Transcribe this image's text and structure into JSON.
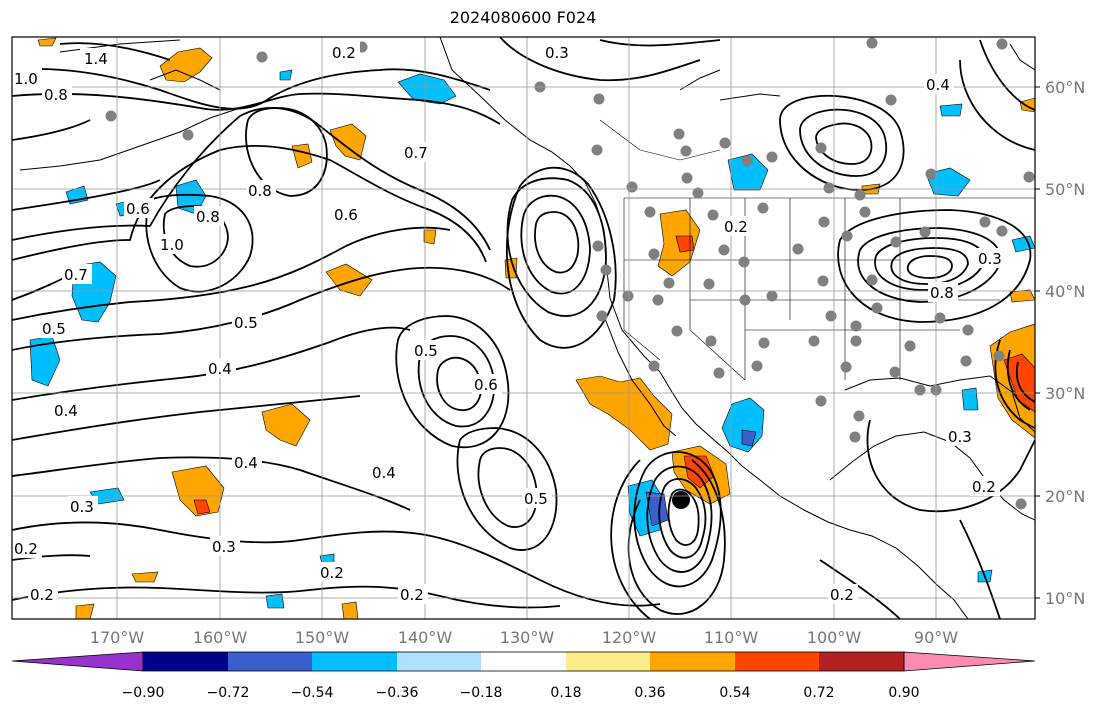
{
  "title": "2024080600 F024",
  "map": {
    "lat_ticks": [
      "60°N",
      "50°N",
      "40°N",
      "30°N",
      "20°N",
      "10°N"
    ],
    "lon_ticks": [
      "170°W",
      "160°W",
      "150°W",
      "140°W",
      "130°W",
      "120°W",
      "110°W",
      "100°W",
      "90°W"
    ],
    "contour_labels": [
      "1.4",
      "1.0",
      "0.8",
      "0.2",
      "0.3",
      "0.4",
      "0.7",
      "0.6",
      "0.8",
      "1.0",
      "0.7",
      "0.5",
      "0.8",
      "0.6",
      "0.5",
      "0.4",
      "0.4",
      "0.5",
      "0.6",
      "0.4",
      "0.5",
      "0.4",
      "0.3",
      "0.2",
      "0.3",
      "0.2",
      "0.2",
      "0.2",
      "0.2",
      "0.3",
      "0.2",
      "0.3",
      "0.2",
      "0.8"
    ],
    "colors": {
      "land_line": "#000000",
      "grid": "#999999",
      "station_dot": "#808080"
    }
  },
  "colorbar": {
    "labels": [
      "−0.90",
      "−0.72",
      "−0.54",
      "−0.36",
      "−0.18",
      "0.18",
      "0.36",
      "0.54",
      "0.72",
      "0.90"
    ],
    "colors": [
      "#9932cc",
      "#00008b",
      "#3a5fcd",
      "#00bfff",
      "#afe1ff",
      "#ffffff",
      "#ffec8b",
      "#ffa500",
      "#ff4500",
      "#b22222",
      "#ff8ab0"
    ]
  }
}
